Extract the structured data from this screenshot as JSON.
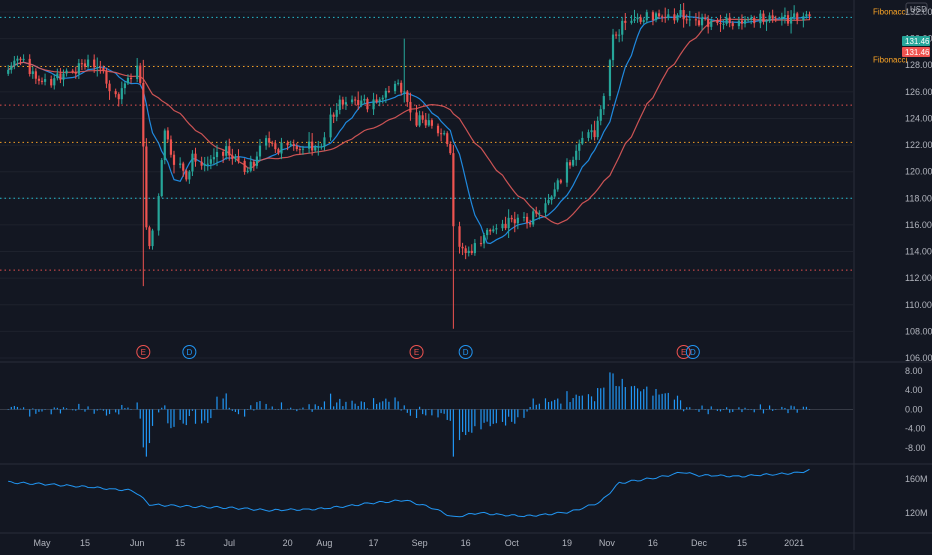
{
  "header": {
    "currency_label": "USD"
  },
  "price_badges": {
    "upper": "131.46",
    "lower": "131.46"
  },
  "fib_labels": {
    "top": "Fibonacci",
    "mid": "Fibonacci"
  },
  "event_markers": [
    {
      "type": "E",
      "date": "2020-06-03"
    },
    {
      "type": "D",
      "date": "2020-06-18"
    },
    {
      "type": "E",
      "date": "2020-08-31"
    },
    {
      "type": "D",
      "date": "2020-09-16"
    },
    {
      "type": "E",
      "date": "2020-11-26"
    },
    {
      "type": "D",
      "date": "2020-11-29"
    }
  ],
  "chart_data": [
    {
      "type": "candlestick",
      "title": "",
      "xlabel": "",
      "ylabel": "",
      "ylim": [
        106,
        132
      ],
      "y_ticks": [
        "132.00",
        "130.00",
        "128.00",
        "126.00",
        "124.00",
        "122.00",
        "120.00",
        "118.00",
        "116.00",
        "114.00",
        "112.00",
        "110.00",
        "108.00",
        "106.00"
      ],
      "x_ticks": [
        "May",
        "15",
        "Jun",
        "15",
        "Jul",
        "20",
        "Aug",
        "17",
        "Sep",
        "16",
        "Oct",
        "19",
        "Nov",
        "16",
        "Dec",
        "15",
        "2021"
      ],
      "horizontal_levels": [
        {
          "value": 131.6,
          "color": "#26c6da",
          "label": "Fibonacci"
        },
        {
          "value": 127.9,
          "color": "#ffa726",
          "label": "Fibonacci"
        },
        {
          "value": 125.0,
          "color": "#ef5350",
          "label": ""
        },
        {
          "value": 122.2,
          "color": "#ffa726",
          "label": ""
        },
        {
          "value": 118.0,
          "color": "#26c6da",
          "label": ""
        },
        {
          "value": 112.6,
          "color": "#ef5350",
          "label": ""
        }
      ],
      "close_anchors": [
        [
          "2020-04-20",
          127.5
        ],
        [
          "2020-04-23",
          128.7
        ],
        [
          "2020-04-28",
          127.2
        ],
        [
          "2020-05-01",
          126.8
        ],
        [
          "2020-05-05",
          126.9
        ],
        [
          "2020-05-08",
          127.4
        ],
        [
          "2020-05-12",
          127.6
        ],
        [
          "2020-05-15",
          128.3
        ],
        [
          "2020-05-20",
          127.8
        ],
        [
          "2020-05-23",
          126.3
        ],
        [
          "2020-05-26",
          125.7
        ],
        [
          "2020-05-29",
          127.0
        ],
        [
          "2020-06-01",
          127.6
        ],
        [
          "2020-06-02",
          127.0
        ],
        [
          "2020-06-03",
          122.0
        ],
        [
          "2020-06-04",
          115.5
        ],
        [
          "2020-06-05",
          114.5
        ],
        [
          "2020-06-08",
          118.0
        ],
        [
          "2020-06-10",
          123.5
        ],
        [
          "2020-06-12",
          121.0
        ],
        [
          "2020-06-15",
          120.5
        ],
        [
          "2020-06-17",
          119.5
        ],
        [
          "2020-06-19",
          121.0
        ],
        [
          "2020-06-22",
          120.2
        ],
        [
          "2020-06-25",
          121.0
        ],
        [
          "2020-06-30",
          121.5
        ],
        [
          "2020-07-03",
          121.0
        ],
        [
          "2020-07-07",
          120.0
        ],
        [
          "2020-07-10",
          121.2
        ],
        [
          "2020-07-13",
          122.6
        ],
        [
          "2020-07-16",
          121.6
        ],
        [
          "2020-07-20",
          122.3
        ],
        [
          "2020-07-23",
          121.6
        ],
        [
          "2020-07-27",
          122.3
        ],
        [
          "2020-07-29",
          121.6
        ],
        [
          "2020-07-31",
          122.0
        ],
        [
          "2020-08-03",
          124.0
        ],
        [
          "2020-08-05",
          124.8
        ],
        [
          "2020-08-08",
          125.4
        ],
        [
          "2020-08-12",
          125.3
        ],
        [
          "2020-08-16",
          125.0
        ],
        [
          "2020-08-19",
          125.5
        ],
        [
          "2020-08-22",
          126.0
        ],
        [
          "2020-08-25",
          126.5
        ],
        [
          "2020-08-27",
          126.0
        ],
        [
          "2020-08-30",
          123.5
        ],
        [
          "2020-09-02",
          124.0
        ],
        [
          "2020-09-06",
          123.2
        ],
        [
          "2020-09-10",
          122.4
        ],
        [
          "2020-09-11",
          121.5
        ],
        [
          "2020-09-12",
          115.5
        ],
        [
          "2020-09-14",
          114.5
        ],
        [
          "2020-09-16",
          113.8
        ],
        [
          "2020-09-18",
          114.2
        ],
        [
          "2020-09-21",
          115.0
        ],
        [
          "2020-09-24",
          115.6
        ],
        [
          "2020-09-27",
          116.0
        ],
        [
          "2020-10-01",
          116.3
        ],
        [
          "2020-10-04",
          116.6
        ],
        [
          "2020-10-07",
          116.2
        ],
        [
          "2020-10-09",
          117.0
        ],
        [
          "2020-10-12",
          117.6
        ],
        [
          "2020-10-15",
          118.6
        ],
        [
          "2020-10-18",
          120.0
        ],
        [
          "2020-10-21",
          121.0
        ],
        [
          "2020-10-24",
          122.5
        ],
        [
          "2020-10-28",
          123.0
        ],
        [
          "2020-10-30",
          124.5
        ],
        [
          "2020-11-01",
          127.0
        ],
        [
          "2020-11-03",
          130.0
        ],
        [
          "2020-11-06",
          131.0
        ],
        [
          "2020-11-10",
          131.4
        ],
        [
          "2020-11-15",
          131.6
        ],
        [
          "2020-11-20",
          131.7
        ],
        [
          "2020-11-25",
          131.8
        ],
        [
          "2020-11-28",
          131.4
        ],
        [
          "2020-12-03",
          131.3
        ],
        [
          "2020-12-08",
          131.2
        ],
        [
          "2020-12-13",
          131.3
        ],
        [
          "2020-12-18",
          131.4
        ],
        [
          "2020-12-23",
          131.5
        ],
        [
          "2020-12-28",
          131.5
        ],
        [
          "2021-01-02",
          131.6
        ],
        [
          "2021-01-06",
          131.7
        ]
      ],
      "series": [
        {
          "name": "",
          "kind": "ma",
          "color": "#2196f3",
          "period": 10
        },
        {
          "name": "",
          "kind": "ma",
          "color": "#e05a5a",
          "period": 30
        }
      ],
      "wick_extremes": [
        {
          "date": "2020-06-03",
          "high": 128.4,
          "low": 111.4
        },
        {
          "date": "2020-08-27",
          "high": 130.0,
          "low": 125.2
        },
        {
          "date": "2020-09-12",
          "high": 122.0,
          "low": 108.2
        }
      ]
    },
    {
      "type": "bar",
      "title": "",
      "ylim": [
        -10.5,
        9
      ],
      "y_ticks": [
        "8.00",
        "4.00",
        "0.00",
        "-4.00",
        "-8.00"
      ],
      "color": "#2196f3",
      "source": "histogram"
    },
    {
      "type": "line",
      "title": "",
      "y_ticks": [
        "160M",
        "120M"
      ],
      "ylim": [
        100,
        175
      ],
      "color": "#2196f3",
      "values_anchors": [
        [
          "2020-04-20",
          156
        ],
        [
          "2020-05-10",
          152
        ],
        [
          "2020-05-31",
          146
        ],
        [
          "2020-06-05",
          130
        ],
        [
          "2020-06-15",
          128
        ],
        [
          "2020-07-01",
          126
        ],
        [
          "2020-07-15",
          123
        ],
        [
          "2020-08-01",
          125
        ],
        [
          "2020-08-15",
          131
        ],
        [
          "2020-08-27",
          135
        ],
        [
          "2020-09-05",
          126
        ],
        [
          "2020-09-12",
          115
        ],
        [
          "2020-09-20",
          120
        ],
        [
          "2020-10-05",
          116
        ],
        [
          "2020-10-20",
          121
        ],
        [
          "2020-10-30",
          133
        ],
        [
          "2020-11-05",
          155
        ],
        [
          "2020-11-20",
          163
        ],
        [
          "2020-11-26",
          168
        ],
        [
          "2020-12-01",
          164
        ],
        [
          "2020-12-15",
          163
        ],
        [
          "2021-01-02",
          167
        ],
        [
          "2021-01-06",
          170
        ]
      ]
    }
  ],
  "colors": {
    "up": "#26a69a",
    "down": "#ef5350",
    "grid": "#2a2e39",
    "text": "#b2b5be",
    "bg": "#131722"
  }
}
